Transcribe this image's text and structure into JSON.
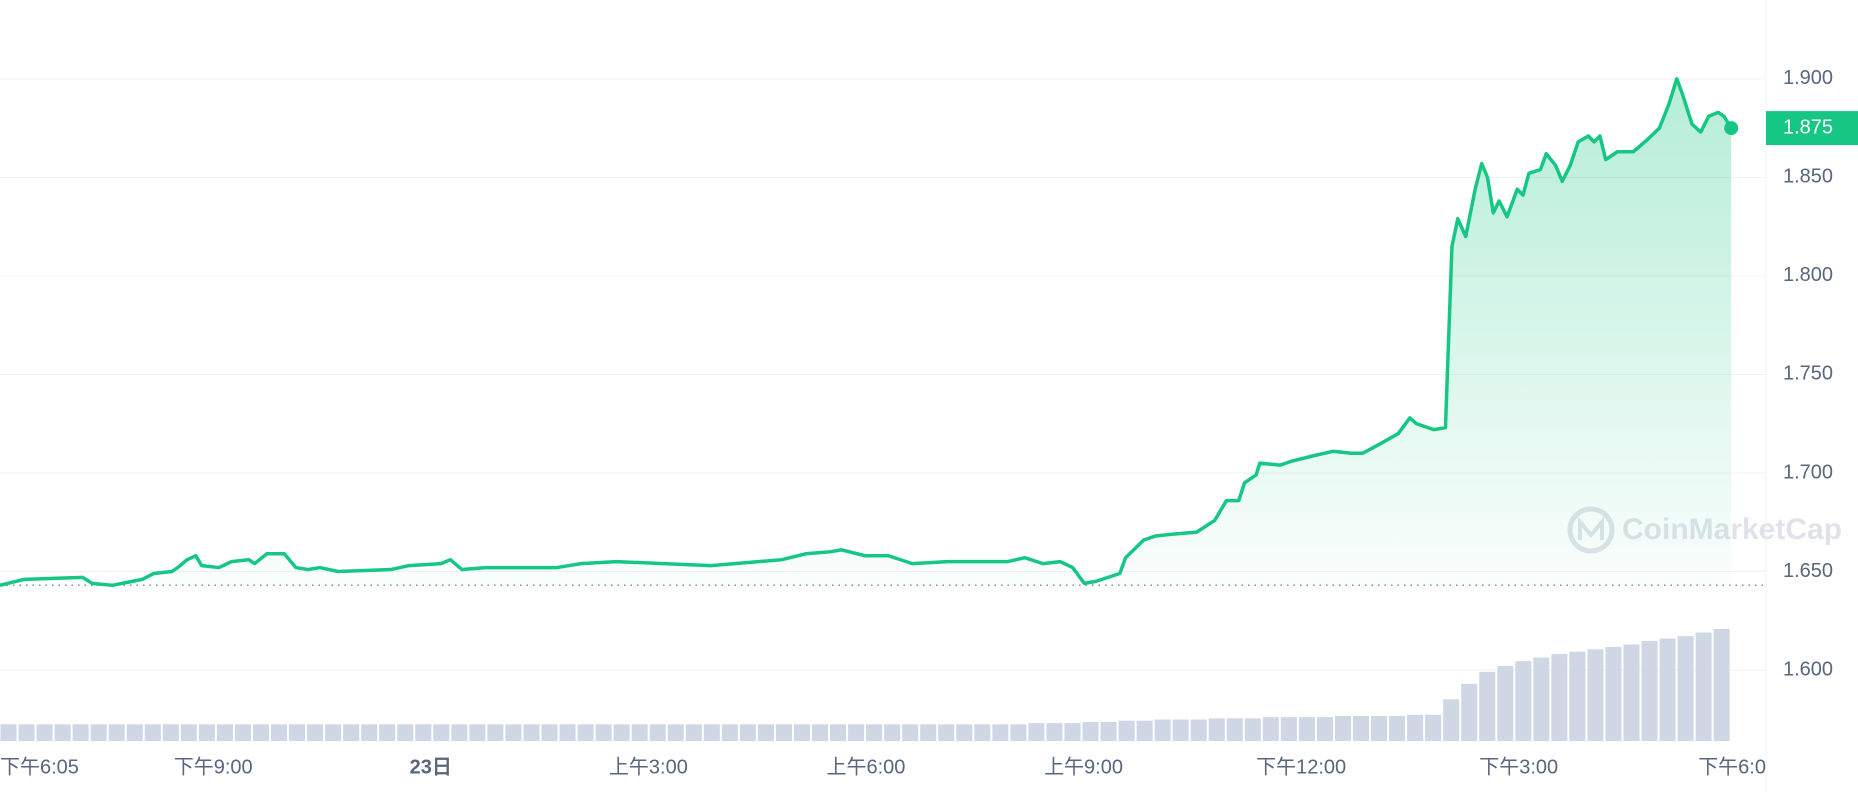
{
  "chart_data": {
    "type": "line",
    "watermark": "CoinMarketCap",
    "xlim": [
      0.06,
      24.41
    ],
    "ylim": [
      1.564,
      1.94
    ],
    "xticks": [
      {
        "value": 0.08,
        "label": "下午6:05"
      },
      {
        "value": 3,
        "label": "下午9:00"
      },
      {
        "value": 6,
        "label": "23日"
      },
      {
        "value": 9,
        "label": "上午3:00"
      },
      {
        "value": 12,
        "label": "上午6:00"
      },
      {
        "value": 15,
        "label": "上午9:00"
      },
      {
        "value": 18,
        "label": "下午12:00"
      },
      {
        "value": 21,
        "label": "下午3:00"
      },
      {
        "value": 24,
        "label": "下午6:0"
      }
    ],
    "yticks": [
      {
        "value": 1.6,
        "label": "1.600"
      },
      {
        "value": 1.65,
        "label": "1.650"
      },
      {
        "value": 1.7,
        "label": "1.700"
      },
      {
        "value": 1.75,
        "label": "1.750"
      },
      {
        "value": 1.8,
        "label": "1.800"
      },
      {
        "value": 1.85,
        "label": "1.850"
      },
      {
        "value": 1.9,
        "label": "1.900"
      }
    ],
    "grid": true,
    "series": [
      {
        "color": "#16c784",
        "x": [
          0.06,
          0.39,
          1.2,
          1.33,
          1.61,
          2.02,
          2.18,
          2.43,
          2.51,
          2.64,
          2.76,
          2.84,
          3.08,
          3.25,
          3.49,
          3.57,
          3.74,
          3.98,
          4.14,
          4.31,
          4.47,
          4.72,
          5.45,
          5.7,
          6.14,
          6.27,
          6.43,
          6.76,
          7.09,
          7.74,
          8.07,
          8.56,
          9.21,
          9.86,
          10.52,
          10.84,
          11.17,
          11.5,
          11.66,
          11.99,
          12.31,
          12.64,
          13.13,
          13.95,
          14.19,
          14.44,
          14.68,
          14.85,
          15.01,
          15.17,
          15.5,
          15.58,
          15.83,
          15.99,
          16.24,
          16.56,
          16.81,
          16.97,
          17.14,
          17.22,
          17.38,
          17.43,
          17.71,
          17.87,
          18.2,
          18.44,
          18.69,
          18.85,
          19.1,
          19.34,
          19.5,
          19.59,
          19.83,
          19.99,
          20.08,
          20.16,
          20.27,
          20.4,
          20.49,
          20.57,
          20.65,
          20.73,
          20.84,
          20.98,
          21.06,
          21.14,
          21.3,
          21.38,
          21.51,
          21.6,
          21.71,
          21.82,
          21.96,
          22.04,
          22.12,
          22.2,
          22.36,
          22.58,
          22.77,
          22.94,
          23.07,
          23.18,
          23.26,
          23.39,
          23.51,
          23.62,
          23.75,
          23.83,
          23.93
        ],
        "values": [
          1.643,
          1.646,
          1.647,
          1.644,
          1.643,
          1.646,
          1.649,
          1.65,
          1.652,
          1.656,
          1.658,
          1.653,
          1.652,
          1.655,
          1.656,
          1.654,
          1.659,
          1.659,
          1.652,
          1.651,
          1.652,
          1.65,
          1.651,
          1.653,
          1.654,
          1.656,
          1.651,
          1.652,
          1.652,
          1.652,
          1.654,
          1.655,
          1.654,
          1.653,
          1.655,
          1.656,
          1.659,
          1.66,
          1.661,
          1.658,
          1.658,
          1.654,
          1.655,
          1.655,
          1.657,
          1.654,
          1.655,
          1.652,
          1.644,
          1.645,
          1.649,
          1.657,
          1.666,
          1.668,
          1.669,
          1.67,
          1.676,
          1.686,
          1.686,
          1.695,
          1.699,
          1.705,
          1.704,
          1.706,
          1.709,
          1.711,
          1.71,
          1.71,
          1.715,
          1.72,
          1.728,
          1.725,
          1.722,
          1.723,
          1.815,
          1.829,
          1.82,
          1.844,
          1.857,
          1.85,
          1.832,
          1.838,
          1.83,
          1.844,
          1.841,
          1.852,
          1.854,
          1.862,
          1.856,
          1.848,
          1.856,
          1.868,
          1.871,
          1.868,
          1.871,
          1.859,
          1.863,
          1.863,
          1.869,
          1.875,
          1.887,
          1.9,
          1.892,
          1.877,
          1.873,
          1.881,
          1.883,
          1.881,
          1.875
        ]
      }
    ],
    "volume_color": "#cfd6e4",
    "volume": [
      14,
      14,
      14,
      14,
      14,
      14,
      14,
      14,
      14,
      14,
      14,
      14,
      14,
      14,
      14,
      14,
      14,
      14,
      14,
      14,
      14,
      14,
      14,
      14,
      14,
      14,
      14,
      14,
      14,
      14,
      14,
      14,
      14,
      14,
      14,
      14,
      14,
      14,
      14,
      14,
      14,
      14,
      14,
      14,
      14,
      14,
      14,
      14,
      14,
      14,
      14,
      14,
      14,
      14,
      14,
      14,
      14,
      15,
      15,
      15,
      16,
      16,
      17,
      17,
      18,
      18,
      18,
      19,
      19,
      19,
      20,
      20,
      20,
      20,
      21,
      21,
      21,
      21,
      22,
      22,
      35,
      48,
      58,
      63,
      67,
      70,
      73,
      75,
      77,
      79,
      81,
      84,
      86,
      88,
      91,
      94
    ]
  }
}
